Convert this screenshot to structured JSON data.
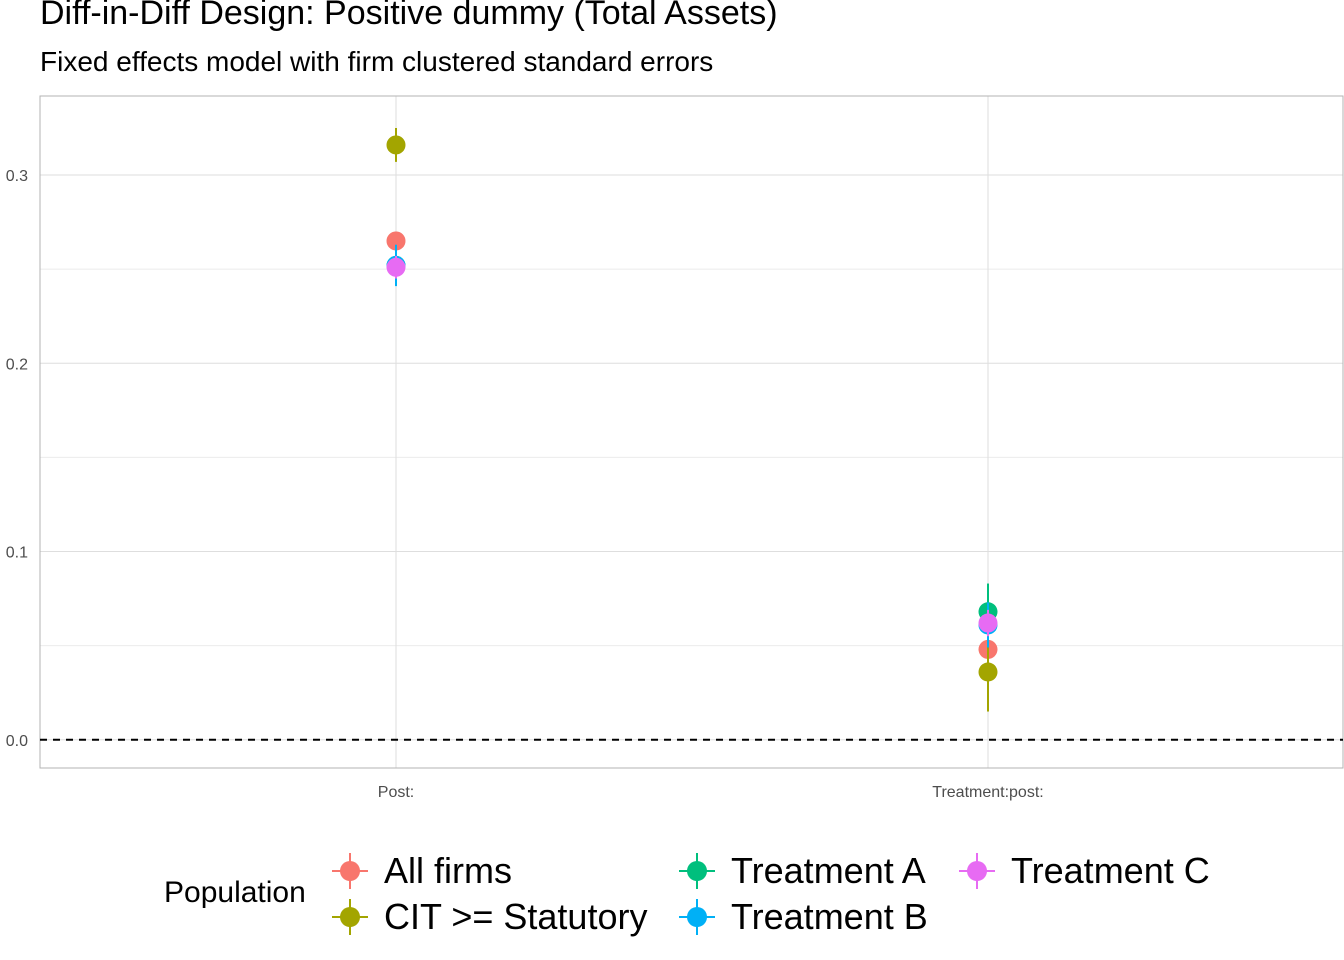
{
  "chart_data": {
    "type": "scatter",
    "title": "Diff-in-Diff Design: Positive dummy (Total Assets)",
    "subtitle": "Fixed effects model with firm clustered standard errors",
    "xlabel": "",
    "ylabel": "",
    "categories": [
      "Post:",
      "Treatment:post:"
    ],
    "ylim": [
      -0.015,
      0.342
    ],
    "y_ticks": [
      0.0,
      0.1,
      0.2,
      0.3
    ],
    "y_tick_labels": [
      "0.0",
      "0.1",
      "0.2",
      "0.3"
    ],
    "reference_line": {
      "y": 0,
      "style": "dashed"
    },
    "grid": true,
    "legend": {
      "title": "Population",
      "position": "bottom"
    },
    "series": [
      {
        "name": "All firms",
        "color": "#F8766D",
        "points": [
          {
            "x": "Post:",
            "y": 0.265,
            "low": 0.26,
            "high": 0.27
          },
          {
            "x": "Treatment:post:",
            "y": 0.048,
            "low": 0.043,
            "high": 0.053
          }
        ]
      },
      {
        "name": "CIT >= Statutory",
        "color": "#A3A500",
        "points": [
          {
            "x": "Post:",
            "y": 0.316,
            "low": 0.307,
            "high": 0.325
          },
          {
            "x": "Treatment:post:",
            "y": 0.036,
            "low": 0.015,
            "high": 0.057
          }
        ]
      },
      {
        "name": "Treatment A",
        "color": "#00BF7D",
        "points": [
          {
            "x": "Post:",
            "y": 0.252,
            "low": 0.245,
            "high": 0.259
          },
          {
            "x": "Treatment:post:",
            "y": 0.068,
            "low": 0.053,
            "high": 0.083
          }
        ]
      },
      {
        "name": "Treatment B",
        "color": "#00B0F6",
        "points": [
          {
            "x": "Post:",
            "y": 0.252,
            "low": 0.241,
            "high": 0.263
          },
          {
            "x": "Treatment:post:",
            "y": 0.061,
            "low": 0.049,
            "high": 0.073
          }
        ]
      },
      {
        "name": "Treatment C",
        "color": "#E76BF3",
        "points": [
          {
            "x": "Post:",
            "y": 0.251,
            "low": 0.245,
            "high": 0.257
          },
          {
            "x": "Treatment:post:",
            "y": 0.062,
            "low": 0.055,
            "high": 0.069
          }
        ]
      }
    ]
  }
}
